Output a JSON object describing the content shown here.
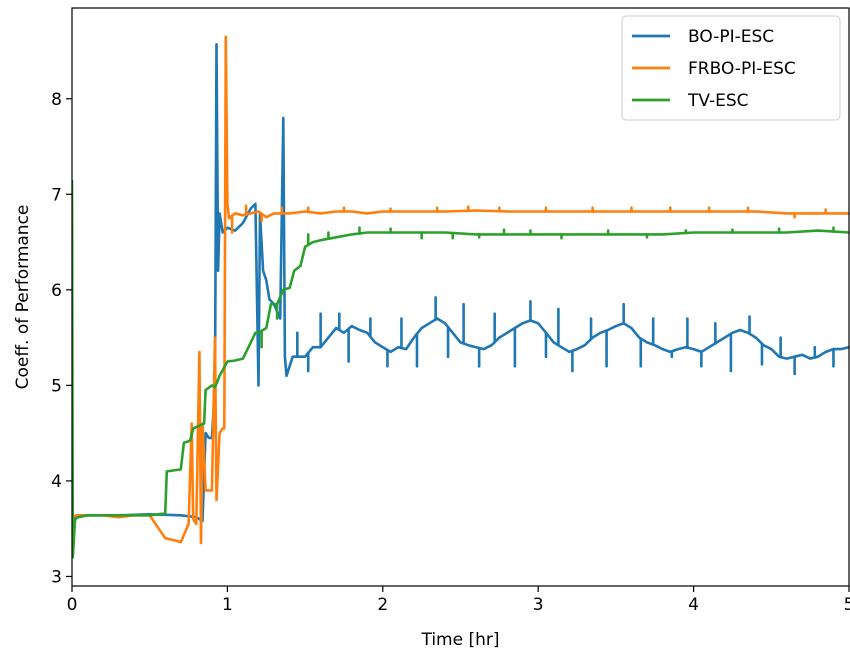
{
  "chart_data": {
    "type": "line",
    "title": "",
    "xlabel": "Time [hr]",
    "ylabel": "Coeff. of Performance",
    "xlim": [
      0,
      5
    ],
    "ylim": [
      2.9,
      8.95
    ],
    "xticks": [
      0,
      1,
      2,
      3,
      4,
      5
    ],
    "xtick_labels": [
      "0",
      "1",
      "2",
      "3",
      "4",
      "5"
    ],
    "yticks": [
      3,
      4,
      5,
      6,
      7,
      8
    ],
    "ytick_labels": [
      "3",
      "4",
      "5",
      "6",
      "7",
      "8"
    ],
    "grid": false,
    "legend_position": "top-right",
    "series": [
      {
        "name": "BO-PI-ESC",
        "color": "#1f77b4",
        "points": [
          [
            0.0,
            3.6
          ],
          [
            0.03,
            3.64
          ],
          [
            0.3,
            3.64
          ],
          [
            0.5,
            3.65
          ],
          [
            0.7,
            3.64
          ],
          [
            0.8,
            3.62
          ],
          [
            0.82,
            3.6
          ],
          [
            0.84,
            3.58
          ],
          [
            0.86,
            4.5
          ],
          [
            0.88,
            4.45
          ],
          [
            0.9,
            4.45
          ],
          [
            0.92,
            5.0
          ],
          [
            0.93,
            8.57
          ],
          [
            0.94,
            6.2
          ],
          [
            0.95,
            6.8
          ],
          [
            0.97,
            6.6
          ],
          [
            1.0,
            6.65
          ],
          [
            1.05,
            6.62
          ],
          [
            1.1,
            6.7
          ],
          [
            1.15,
            6.85
          ],
          [
            1.18,
            6.9
          ],
          [
            1.2,
            5.0
          ],
          [
            1.21,
            6.8
          ],
          [
            1.23,
            6.2
          ],
          [
            1.25,
            6.1
          ],
          [
            1.27,
            5.9
          ],
          [
            1.3,
            5.85
          ],
          [
            1.34,
            5.7
          ],
          [
            1.36,
            7.8
          ],
          [
            1.37,
            5.3
          ],
          [
            1.38,
            5.1
          ],
          [
            1.42,
            5.3
          ],
          [
            1.5,
            5.3
          ],
          [
            1.55,
            5.4
          ],
          [
            1.6,
            5.4
          ],
          [
            1.65,
            5.5
          ],
          [
            1.7,
            5.6
          ],
          [
            1.75,
            5.55
          ],
          [
            1.8,
            5.62
          ],
          [
            1.85,
            5.58
          ],
          [
            1.9,
            5.55
          ],
          [
            1.95,
            5.45
          ],
          [
            2.0,
            5.4
          ],
          [
            2.05,
            5.35
          ],
          [
            2.1,
            5.4
          ],
          [
            2.15,
            5.38
          ],
          [
            2.2,
            5.5
          ],
          [
            2.25,
            5.6
          ],
          [
            2.3,
            5.65
          ],
          [
            2.35,
            5.7
          ],
          [
            2.4,
            5.65
          ],
          [
            2.45,
            5.55
          ],
          [
            2.5,
            5.45
          ],
          [
            2.55,
            5.42
          ],
          [
            2.6,
            5.4
          ],
          [
            2.65,
            5.38
          ],
          [
            2.7,
            5.42
          ],
          [
            2.75,
            5.5
          ],
          [
            2.8,
            5.55
          ],
          [
            2.85,
            5.6
          ],
          [
            2.9,
            5.65
          ],
          [
            2.95,
            5.68
          ],
          [
            3.0,
            5.65
          ],
          [
            3.05,
            5.55
          ],
          [
            3.1,
            5.45
          ],
          [
            3.15,
            5.4
          ],
          [
            3.2,
            5.35
          ],
          [
            3.25,
            5.38
          ],
          [
            3.3,
            5.42
          ],
          [
            3.35,
            5.5
          ],
          [
            3.4,
            5.55
          ],
          [
            3.45,
            5.58
          ],
          [
            3.5,
            5.62
          ],
          [
            3.55,
            5.65
          ],
          [
            3.6,
            5.6
          ],
          [
            3.65,
            5.5
          ],
          [
            3.7,
            5.45
          ],
          [
            3.75,
            5.42
          ],
          [
            3.8,
            5.38
          ],
          [
            3.85,
            5.35
          ],
          [
            3.9,
            5.38
          ],
          [
            3.95,
            5.4
          ],
          [
            4.0,
            5.38
          ],
          [
            4.05,
            5.35
          ],
          [
            4.1,
            5.4
          ],
          [
            4.15,
            5.45
          ],
          [
            4.2,
            5.5
          ],
          [
            4.25,
            5.55
          ],
          [
            4.3,
            5.58
          ],
          [
            4.35,
            5.55
          ],
          [
            4.4,
            5.5
          ],
          [
            4.45,
            5.42
          ],
          [
            4.5,
            5.38
          ],
          [
            4.55,
            5.3
          ],
          [
            4.6,
            5.28
          ],
          [
            4.65,
            5.3
          ],
          [
            4.7,
            5.32
          ],
          [
            4.75,
            5.28
          ],
          [
            4.8,
            5.3
          ],
          [
            4.85,
            5.35
          ],
          [
            4.9,
            5.38
          ],
          [
            4.95,
            5.38
          ],
          [
            5.0,
            5.4
          ]
        ],
        "spikes": [
          [
            1.45,
            5.55
          ],
          [
            1.52,
            5.15
          ],
          [
            1.6,
            5.75
          ],
          [
            1.72,
            5.75
          ],
          [
            1.78,
            5.25
          ],
          [
            1.92,
            5.7
          ],
          [
            2.03,
            5.2
          ],
          [
            2.12,
            5.7
          ],
          [
            2.22,
            5.2
          ],
          [
            2.34,
            5.92
          ],
          [
            2.42,
            5.3
          ],
          [
            2.52,
            5.85
          ],
          [
            2.62,
            5.2
          ],
          [
            2.72,
            5.75
          ],
          [
            2.85,
            5.2
          ],
          [
            2.95,
            5.88
          ],
          [
            3.05,
            5.3
          ],
          [
            3.13,
            5.8
          ],
          [
            3.22,
            5.15
          ],
          [
            3.34,
            5.7
          ],
          [
            3.44,
            5.2
          ],
          [
            3.55,
            5.85
          ],
          [
            3.66,
            5.2
          ],
          [
            3.74,
            5.7
          ],
          [
            3.86,
            5.3
          ],
          [
            3.96,
            5.7
          ],
          [
            4.05,
            5.2
          ],
          [
            4.14,
            5.65
          ],
          [
            4.24,
            5.15
          ],
          [
            4.36,
            5.72
          ],
          [
            4.44,
            5.22
          ],
          [
            4.56,
            5.5
          ],
          [
            4.65,
            5.12
          ],
          [
            4.78,
            5.4
          ],
          [
            4.9,
            5.2
          ]
        ]
      },
      {
        "name": "FRBO-PI-ESC",
        "color": "#ff7f0e",
        "points": [
          [
            0.0,
            3.62
          ],
          [
            0.03,
            3.64
          ],
          [
            0.2,
            3.64
          ],
          [
            0.3,
            3.62
          ],
          [
            0.4,
            3.64
          ],
          [
            0.5,
            3.64
          ],
          [
            0.6,
            3.4
          ],
          [
            0.68,
            3.37
          ],
          [
            0.7,
            3.36
          ],
          [
            0.75,
            3.55
          ],
          [
            0.77,
            4.6
          ],
          [
            0.78,
            3.6
          ],
          [
            0.8,
            3.55
          ],
          [
            0.82,
            5.35
          ],
          [
            0.83,
            3.35
          ],
          [
            0.84,
            4.6
          ],
          [
            0.86,
            3.9
          ],
          [
            0.9,
            3.9
          ],
          [
            0.92,
            5.5
          ],
          [
            0.93,
            3.8
          ],
          [
            0.95,
            4.5
          ],
          [
            0.97,
            4.55
          ],
          [
            0.98,
            4.55
          ],
          [
            0.99,
            8.65
          ],
          [
            1.0,
            6.9
          ],
          [
            1.01,
            6.75
          ],
          [
            1.05,
            6.8
          ],
          [
            1.1,
            6.78
          ],
          [
            1.15,
            6.8
          ],
          [
            1.2,
            6.82
          ],
          [
            1.25,
            6.76
          ],
          [
            1.3,
            6.8
          ],
          [
            1.4,
            6.8
          ],
          [
            1.5,
            6.82
          ],
          [
            1.6,
            6.8
          ],
          [
            1.7,
            6.82
          ],
          [
            1.8,
            6.82
          ],
          [
            1.9,
            6.8
          ],
          [
            2.0,
            6.82
          ],
          [
            2.2,
            6.82
          ],
          [
            2.4,
            6.82
          ],
          [
            2.6,
            6.83
          ],
          [
            2.8,
            6.82
          ],
          [
            3.0,
            6.82
          ],
          [
            3.2,
            6.82
          ],
          [
            3.4,
            6.82
          ],
          [
            3.6,
            6.82
          ],
          [
            3.8,
            6.82
          ],
          [
            4.0,
            6.82
          ],
          [
            4.2,
            6.82
          ],
          [
            4.4,
            6.82
          ],
          [
            4.6,
            6.8
          ],
          [
            4.8,
            6.8
          ],
          [
            5.0,
            6.8
          ]
        ],
        "spikes": [
          [
            1.03,
            6.6
          ],
          [
            1.12,
            6.88
          ],
          [
            1.22,
            6.72
          ],
          [
            1.35,
            6.86
          ],
          [
            1.52,
            6.86
          ],
          [
            1.75,
            6.86
          ],
          [
            2.05,
            6.85
          ],
          [
            2.35,
            6.86
          ],
          [
            2.55,
            6.87
          ],
          [
            2.75,
            6.86
          ],
          [
            3.05,
            6.86
          ],
          [
            3.35,
            6.86
          ],
          [
            3.6,
            6.86
          ],
          [
            3.85,
            6.86
          ],
          [
            4.1,
            6.86
          ],
          [
            4.35,
            6.86
          ],
          [
            4.65,
            6.76
          ],
          [
            4.85,
            6.84
          ]
        ]
      },
      {
        "name": "TV-ESC",
        "color": "#2ca02c",
        "points": [
          [
            0.0,
            7.15
          ],
          [
            0.005,
            3.2
          ],
          [
            0.02,
            3.6
          ],
          [
            0.04,
            3.62
          ],
          [
            0.1,
            3.64
          ],
          [
            0.3,
            3.64
          ],
          [
            0.5,
            3.64
          ],
          [
            0.6,
            3.66
          ],
          [
            0.61,
            4.1
          ],
          [
            0.7,
            4.12
          ],
          [
            0.72,
            4.4
          ],
          [
            0.76,
            4.42
          ],
          [
            0.78,
            4.55
          ],
          [
            0.85,
            4.6
          ],
          [
            0.86,
            4.95
          ],
          [
            0.9,
            5.0
          ],
          [
            0.92,
            4.98
          ],
          [
            0.95,
            5.1
          ],
          [
            1.0,
            5.25
          ],
          [
            1.05,
            5.26
          ],
          [
            1.1,
            5.28
          ],
          [
            1.13,
            5.38
          ],
          [
            1.18,
            5.55
          ],
          [
            1.2,
            5.55
          ],
          [
            1.25,
            5.6
          ],
          [
            1.28,
            5.85
          ],
          [
            1.32,
            5.85
          ],
          [
            1.36,
            6.0
          ],
          [
            1.4,
            6.02
          ],
          [
            1.43,
            6.2
          ],
          [
            1.47,
            6.25
          ],
          [
            1.5,
            6.45
          ],
          [
            1.55,
            6.5
          ],
          [
            1.6,
            6.52
          ],
          [
            1.7,
            6.55
          ],
          [
            1.8,
            6.58
          ],
          [
            1.9,
            6.6
          ],
          [
            2.0,
            6.6
          ],
          [
            2.2,
            6.6
          ],
          [
            2.4,
            6.6
          ],
          [
            2.6,
            6.58
          ],
          [
            2.8,
            6.58
          ],
          [
            3.0,
            6.58
          ],
          [
            3.2,
            6.58
          ],
          [
            3.4,
            6.58
          ],
          [
            3.6,
            6.58
          ],
          [
            3.8,
            6.58
          ],
          [
            4.0,
            6.6
          ],
          [
            4.2,
            6.6
          ],
          [
            4.4,
            6.6
          ],
          [
            4.6,
            6.6
          ],
          [
            4.8,
            6.62
          ],
          [
            5.0,
            6.6
          ]
        ],
        "spikes": [
          [
            1.22,
            5.4
          ],
          [
            1.32,
            5.7
          ],
          [
            1.52,
            6.58
          ],
          [
            1.65,
            6.6
          ],
          [
            1.85,
            6.65
          ],
          [
            2.05,
            6.64
          ],
          [
            2.25,
            6.54
          ],
          [
            2.45,
            6.54
          ],
          [
            2.62,
            6.55
          ],
          [
            2.78,
            6.63
          ],
          [
            2.95,
            6.62
          ],
          [
            3.15,
            6.54
          ],
          [
            3.45,
            6.62
          ],
          [
            3.7,
            6.55
          ],
          [
            3.95,
            6.62
          ],
          [
            4.25,
            6.63
          ],
          [
            4.55,
            6.64
          ],
          [
            4.9,
            6.65
          ]
        ]
      }
    ]
  }
}
